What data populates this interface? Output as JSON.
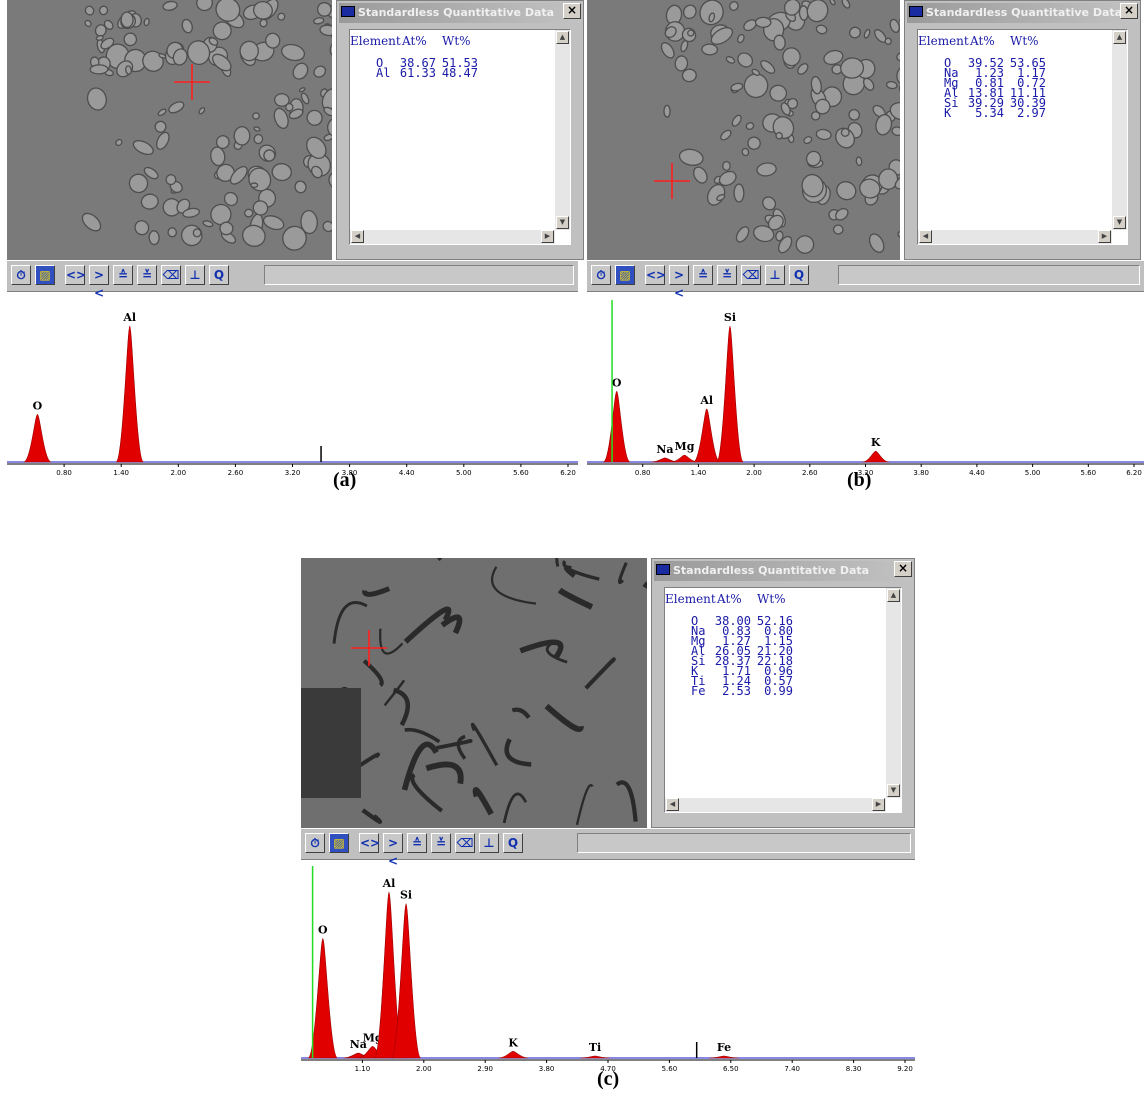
{
  "window_title": "Standardless Quantitative Data",
  "close_glyph": "×",
  "table_header": {
    "element": "Element",
    "at": "At%",
    "wt": "Wt%"
  },
  "toolbar_buttons": [
    {
      "name": "clock-icon",
      "glyph": "⏱"
    },
    {
      "name": "palette-icon",
      "glyph": "▨"
    },
    {
      "name": "expand-horizontal-icon",
      "glyph": "<>"
    },
    {
      "name": "compress-horizontal-icon",
      "glyph": "><"
    },
    {
      "name": "scale-up-icon",
      "glyph": "≙"
    },
    {
      "name": "scale-down-icon",
      "glyph": "≚"
    },
    {
      "name": "erase-icon",
      "glyph": "⌫"
    },
    {
      "name": "peak-label-icon",
      "glyph": "⊥"
    },
    {
      "name": "quantify-icon",
      "glyph": "Q"
    }
  ],
  "colors": {
    "peak_fill": "#e00000",
    "baseline": "#4040d0",
    "cursor": "#22dd22",
    "marker": "#000000",
    "crosshair": "#ff2020"
  },
  "panels": [
    {
      "caption": "(a)",
      "quant": [
        {
          "el": "O",
          "at": "38.67",
          "wt": "51.53"
        },
        {
          "el": "Al",
          "at": "61.33",
          "wt": "48.47"
        }
      ],
      "spectrum": {
        "x_ticks": [
          "0.80",
          "1.40",
          "2.00",
          "2.60",
          "3.20",
          "3.80",
          "4.40",
          "5.00",
          "5.60",
          "6.20"
        ],
        "x_range": [
          0.2,
          6.2
        ],
        "peaks": [
          {
            "label": "O",
            "x": 0.52,
            "height": 0.35
          },
          {
            "label": "Al",
            "x": 1.49,
            "height": 1.0
          }
        ],
        "cursor_x": null,
        "marker_x": 3.5
      }
    },
    {
      "caption": "(b)",
      "quant": [
        {
          "el": "O",
          "at": "39.52",
          "wt": "53.65"
        },
        {
          "el": "Na",
          "at": "1.23",
          "wt": "1.17"
        },
        {
          "el": "Mg",
          "at": "0.81",
          "wt": "0.72"
        },
        {
          "el": "Al",
          "at": "13.81",
          "wt": "11.11"
        },
        {
          "el": "Si",
          "at": "39.29",
          "wt": "30.39"
        },
        {
          "el": "K",
          "at": "5.34",
          "wt": "2.97"
        }
      ],
      "spectrum": {
        "x_ticks": [
          "0.80",
          "1.40",
          "2.00",
          "2.60",
          "3.20",
          "3.80",
          "4.40",
          "5.00",
          "5.60",
          "6.20"
        ],
        "x_range": [
          0.2,
          6.2
        ],
        "peaks": [
          {
            "label": "O",
            "x": 0.52,
            "height": 0.52
          },
          {
            "label": "Na",
            "x": 1.04,
            "height": 0.03
          },
          {
            "label": "Mg",
            "x": 1.25,
            "height": 0.05
          },
          {
            "label": "Al",
            "x": 1.49,
            "height": 0.39
          },
          {
            "label": "Si",
            "x": 1.74,
            "height": 1.0
          },
          {
            "label": "K",
            "x": 3.31,
            "height": 0.08
          }
        ],
        "cursor_x": 0.47,
        "marker_x": null
      }
    },
    {
      "caption": "(c)",
      "quant": [
        {
          "el": "O",
          "at": "38.00",
          "wt": "52.16"
        },
        {
          "el": "Na",
          "at": "0.83",
          "wt": "0.80"
        },
        {
          "el": "Mg",
          "at": "1.27",
          "wt": "1.15"
        },
        {
          "el": "Al",
          "at": "26.05",
          "wt": "21.20"
        },
        {
          "el": "Si",
          "at": "28.37",
          "wt": "22.18"
        },
        {
          "el": "K",
          "at": "1.71",
          "wt": "0.96"
        },
        {
          "el": "Ti",
          "at": "1.24",
          "wt": "0.57"
        },
        {
          "el": "Fe",
          "at": "2.53",
          "wt": "0.99"
        }
      ],
      "spectrum": {
        "x_ticks": [
          "1.10",
          "2.00",
          "2.90",
          "3.80",
          "4.70",
          "5.60",
          "6.50",
          "7.40",
          "8.30",
          "9.20"
        ],
        "x_range": [
          0.2,
          9.2
        ],
        "peaks": [
          {
            "label": "O",
            "x": 0.52,
            "height": 0.72
          },
          {
            "label": "Na",
            "x": 1.04,
            "height": 0.03
          },
          {
            "label": "Mg",
            "x": 1.25,
            "height": 0.07
          },
          {
            "label": "Al",
            "x": 1.49,
            "height": 1.0
          },
          {
            "label": "Si",
            "x": 1.74,
            "height": 0.93
          },
          {
            "label": "K",
            "x": 3.31,
            "height": 0.04
          },
          {
            "label": "Ti",
            "x": 4.51,
            "height": 0.01
          },
          {
            "label": "Fe",
            "x": 6.4,
            "height": 0.01
          }
        ],
        "cursor_x": 0.37,
        "marker_x": 6.0
      }
    }
  ]
}
